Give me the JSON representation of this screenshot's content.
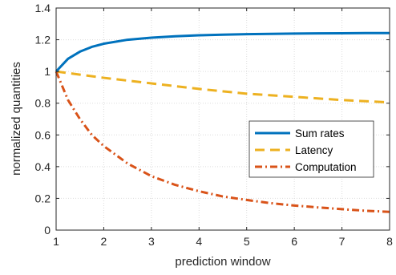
{
  "chart_data": {
    "type": "line",
    "xlabel": "prediction window",
    "ylabel": "normalized quantities",
    "xlim": [
      1,
      8
    ],
    "ylim": [
      0,
      1.4
    ],
    "xticks": [
      1,
      2,
      3,
      4,
      5,
      6,
      7,
      8
    ],
    "yticks": [
      0,
      0.2,
      0.4,
      0.6,
      0.8,
      1,
      1.2,
      1.4
    ],
    "xtick_labels": [
      "1",
      "2",
      "3",
      "4",
      "5",
      "6",
      "7",
      "8"
    ],
    "ytick_labels": [
      "0",
      "0.2",
      "0.4",
      "0.6",
      "0.8",
      "1",
      "1.2",
      "1.4"
    ],
    "grid": true,
    "legend_position": "right",
    "series": [
      {
        "name": "Sum rates",
        "color": "#0072BD",
        "style": "solid",
        "x": [
          1,
          1.25,
          1.5,
          1.75,
          2,
          2.5,
          3,
          3.5,
          4,
          4.5,
          5,
          5.5,
          6,
          6.5,
          7,
          7.5,
          8
        ],
        "values": [
          1.0,
          1.08,
          1.125,
          1.155,
          1.175,
          1.2,
          1.213,
          1.222,
          1.228,
          1.232,
          1.235,
          1.237,
          1.239,
          1.24,
          1.241,
          1.242,
          1.242
        ]
      },
      {
        "name": "Latency",
        "color": "#EDB120",
        "style": "dashed",
        "x": [
          1,
          2,
          3,
          4,
          5,
          6,
          7,
          8
        ],
        "values": [
          1.0,
          0.96,
          0.925,
          0.89,
          0.86,
          0.84,
          0.82,
          0.805
        ]
      },
      {
        "name": "Computation",
        "color": "#D95319",
        "style": "dashdot",
        "x": [
          1,
          1.25,
          1.5,
          1.75,
          2,
          2.5,
          3,
          3.5,
          4,
          4.5,
          5,
          5.5,
          6,
          6.5,
          7,
          7.5,
          8
        ],
        "values": [
          1.0,
          0.82,
          0.7,
          0.6,
          0.53,
          0.42,
          0.34,
          0.285,
          0.245,
          0.212,
          0.19,
          0.17,
          0.155,
          0.143,
          0.132,
          0.122,
          0.115
        ]
      }
    ]
  }
}
